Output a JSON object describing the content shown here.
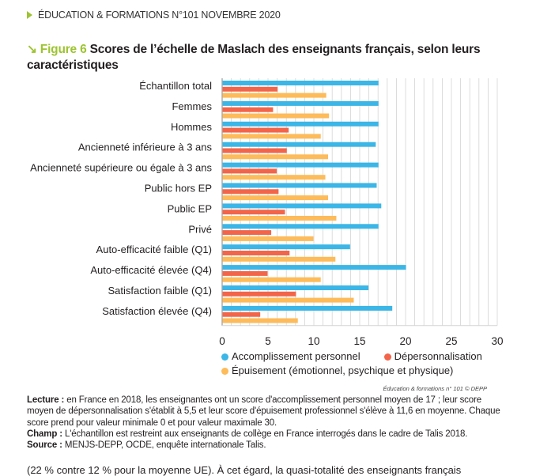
{
  "header": {
    "publication": "ÉDUCATION & FORMATIONS N°101 NOVEMBRE 2020"
  },
  "title": {
    "arrow": "↘",
    "figure_label": "Figure 6",
    "text": "Scores de l’échelle de Maslach des enseignants français, selon leurs caractéristiques"
  },
  "colors": {
    "accent": "#9dc430",
    "accomplissement": "#3bb6e6",
    "depersonnalisation": "#f2654a",
    "epuisement": "#fdbb5a",
    "grid": "#d4d4d4"
  },
  "chart_data": {
    "type": "bar",
    "orientation": "horizontal",
    "title": "Scores de l’échelle de Maslach des enseignants français, selon leurs caractéristiques",
    "xlabel": "",
    "ylabel": "",
    "xlim": [
      0,
      30
    ],
    "xticks": [
      0,
      5,
      10,
      15,
      20,
      25,
      30
    ],
    "grid": true,
    "legend_position": "bottom",
    "categories": [
      "Échantillon total",
      "Femmes",
      "Hommes",
      "Ancienneté inférieure à 3 ans",
      "Ancienneté supérieure ou égale à 3 ans",
      "Public hors EP",
      "Public EP",
      "Privé",
      "Auto-efficacité faible (Q1)",
      "Auto-efficacité élevée (Q4)",
      "Satisfaction faible (Q1)",
      "Satisfaction élevée (Q4)"
    ],
    "series": [
      {
        "name": "Accomplissement personnel",
        "color": "#3bb6e6",
        "values": [
          17.0,
          17.0,
          17.0,
          16.7,
          17.0,
          16.8,
          17.3,
          17.0,
          13.9,
          20.0,
          15.9,
          18.5
        ]
      },
      {
        "name": "Dépersonnalisation",
        "color": "#f2654a",
        "values": [
          6.0,
          5.5,
          7.2,
          7.0,
          5.9,
          6.1,
          6.8,
          5.3,
          7.3,
          4.9,
          8.0,
          4.1
        ]
      },
      {
        "name": "Épuisement (émotionnel, psychique et physique)",
        "color": "#fdbb5a",
        "values": [
          11.3,
          11.6,
          10.7,
          11.5,
          11.2,
          11.5,
          12.4,
          9.9,
          12.3,
          10.7,
          14.3,
          8.2
        ]
      }
    ]
  },
  "legend": {
    "items": [
      "Accomplissement personnel",
      "Dépersonnalisation",
      "Épuisement (émotionnel, psychique et physique)"
    ]
  },
  "credit": "Éducation & formations n° 101 © DEPP",
  "notes": {
    "lecture_label": "Lecture :",
    "lecture_text": " en France en 2018, les enseignantes ont un score d'accomplissement personnel moyen de 17 ; leur score moyen de dépersonnalisation s'établit à 5,5 et leur score d'épuisement professionnel s'élève à 11,6 en moyenne. Chaque score prend pour valeur minimale 0 et pour valeur maximale 30.",
    "champ_label": "Champ :",
    "champ_text": " L'échantillon est restreint aux enseignants de collège en France interrogés dans le cadre de Talis 2018.",
    "source_label": "Source :",
    "source_text": " MENJS-DEPP, OCDE, enquête internationale Talis."
  },
  "body_text_cut": "(22 % contre 12 % pour la moyenne UE). À cet égard, la quasi-totalité des enseignants français"
}
